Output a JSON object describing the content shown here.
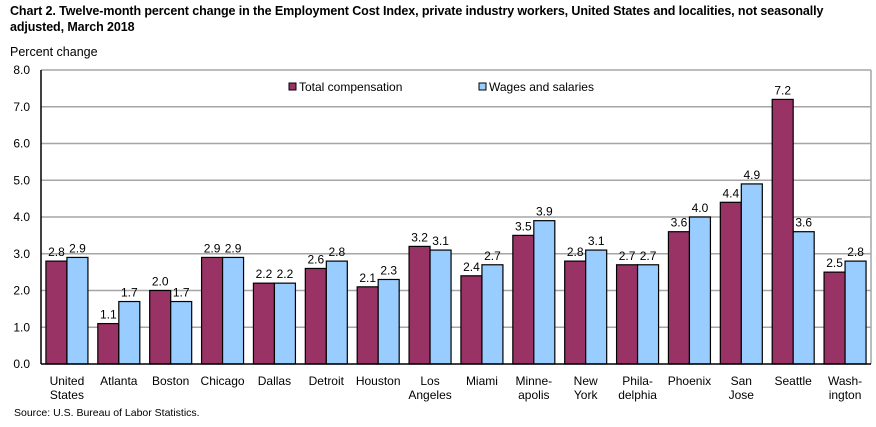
{
  "chart_data": {
    "type": "bar",
    "title": "Chart 2. Twelve-month percent change in the Employment Cost Index, private industry workers, United States and localities, not seasonally adjusted, March 2018",
    "ylabel": "Percent change",
    "xlabel": "",
    "ylim": [
      0,
      8
    ],
    "yticks": [
      "0.0",
      "1.0",
      "2.0",
      "3.0",
      "4.0",
      "5.0",
      "6.0",
      "7.0",
      "8.0"
    ],
    "grid": true,
    "legend_position": "top-center",
    "categories": [
      [
        "United",
        "States"
      ],
      [
        "Atlanta"
      ],
      [
        "Boston"
      ],
      [
        "Chicago"
      ],
      [
        "Dallas"
      ],
      [
        "Detroit"
      ],
      [
        "Houston"
      ],
      [
        "Los",
        "Angeles"
      ],
      [
        "Miami"
      ],
      [
        "Minne-",
        "apolis"
      ],
      [
        "New",
        "York"
      ],
      [
        "Phila-",
        "delphia"
      ],
      [
        "Phoenix"
      ],
      [
        "San",
        "Jose"
      ],
      [
        "Seattle"
      ],
      [
        "Wash-",
        "ington"
      ]
    ],
    "series": [
      {
        "name": "Total compensation",
        "color": "#993366",
        "values": [
          2.8,
          1.1,
          2.0,
          2.9,
          2.2,
          2.6,
          2.1,
          3.2,
          2.4,
          3.5,
          2.8,
          2.7,
          3.6,
          4.4,
          7.2,
          2.5
        ]
      },
      {
        "name": "Wages and salaries",
        "color": "#99ccff",
        "values": [
          2.9,
          1.7,
          1.7,
          2.9,
          2.2,
          2.8,
          2.3,
          3.1,
          2.7,
          3.9,
          3.1,
          2.7,
          4.0,
          4.9,
          3.6,
          2.8
        ]
      }
    ],
    "source": "Source: U.S. Bureau of Labor Statistics."
  }
}
